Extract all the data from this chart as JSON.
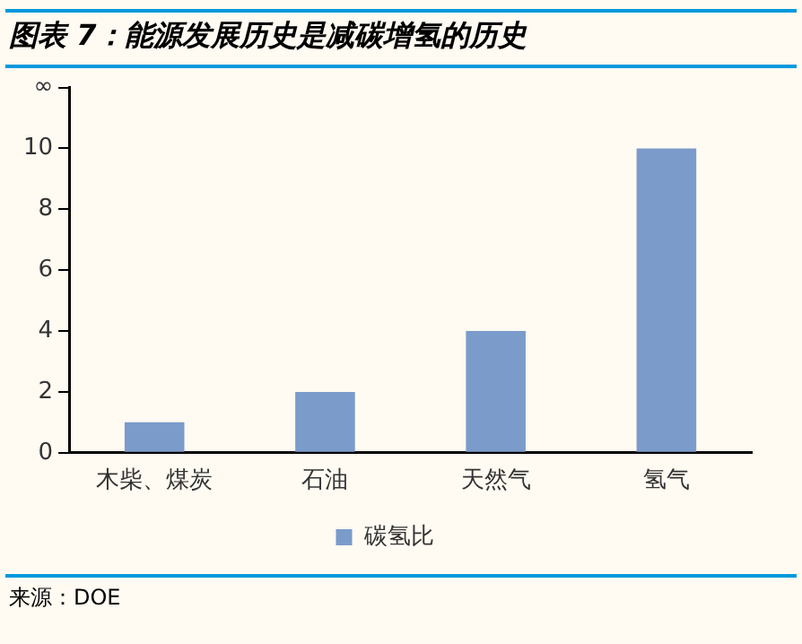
{
  "chart_data": {
    "type": "bar",
    "title": "图表 7：能源发展历史是减碳增氢的历史",
    "categories": [
      "木柴、煤炭",
      "石油",
      "天然气",
      "氢气"
    ],
    "series": [
      {
        "name": "碳氢比",
        "color": "#7b9bcb",
        "values": [
          1,
          2,
          4,
          10
        ]
      }
    ],
    "ylim": [
      0,
      12
    ],
    "yticks": [
      0,
      2,
      4,
      6,
      8,
      10,
      {
        "value": 12,
        "label": "∞"
      }
    ],
    "grid": false,
    "legend": "bottom",
    "annotations": [
      "来源：DOE"
    ]
  }
}
